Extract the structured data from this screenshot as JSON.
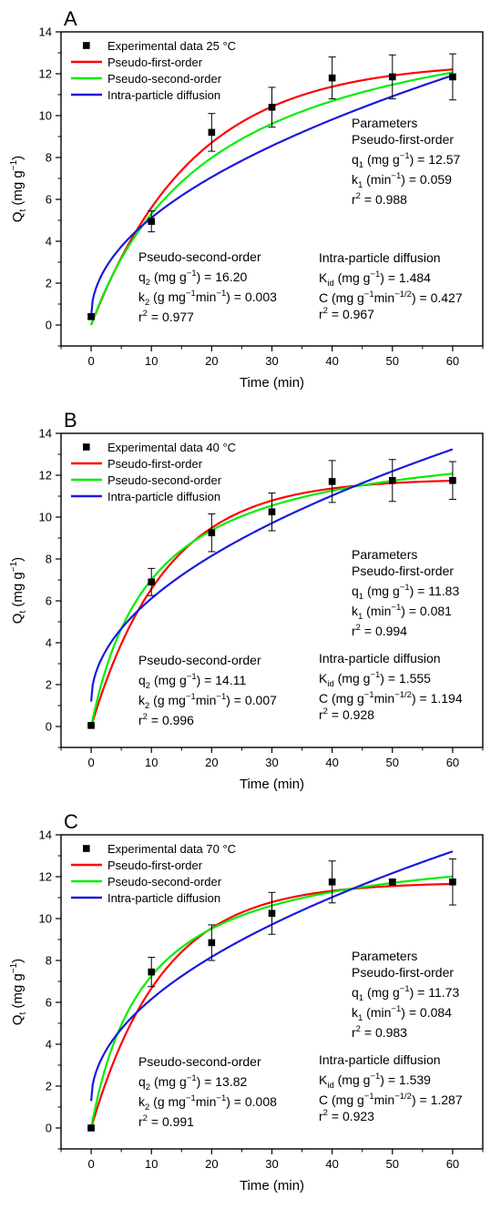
{
  "chart_data": [
    {
      "type": "line",
      "panel_label": "A",
      "xlabel": "Time (min)",
      "ylabel": "Q",
      "ylabel_sub": "t",
      "ylabel_unit": " (mg g",
      "ylabel_unit_sup": "−1",
      "ylabel_unit_close": ")",
      "xlim": [
        -5,
        65
      ],
      "ylim": [
        -1,
        14
      ],
      "xticks": [
        0,
        10,
        20,
        30,
        40,
        50,
        60
      ],
      "yticks": [
        0,
        2,
        4,
        6,
        8,
        10,
        12,
        14
      ],
      "legend": {
        "experimental": "Experimental data 25 °C",
        "pfo": "Pseudo-first-order",
        "pso": "Pseudo-second-order",
        "ipd": "Intra-particle diffusion"
      },
      "experimental": {
        "x": [
          0,
          10,
          20,
          30,
          40,
          50,
          60
        ],
        "y": [
          0.4,
          4.95,
          9.2,
          10.4,
          11.8,
          11.85,
          11.85
        ],
        "error": [
          0.1,
          0.5,
          0.9,
          0.95,
          1.0,
          1.05,
          1.1
        ]
      },
      "params": {
        "pfo": {
          "qe": 12.57,
          "k1": 0.059,
          "r2": 0.988
        },
        "pso": {
          "qe": 16.2,
          "k2": 0.003,
          "r2": 0.977
        },
        "ipd": {
          "kid": 1.484,
          "c": 0.427,
          "r2": 0.967
        }
      },
      "annotations": {
        "parameters_title": "Parameters",
        "pfo_title": "Pseudo-first-order",
        "pfo_q1": "12.57",
        "pfo_k1": "0.059",
        "pfo_r2": "0.988",
        "pso_title": "Pseudo-second-order",
        "pso_q2": "16.20",
        "pso_k2": "0.003",
        "pso_r2": "0.977",
        "ipd_title": "Intra-particle diffusion",
        "ipd_kid": "1.484",
        "ipd_c": "0.427",
        "ipd_r2": "0.967"
      }
    },
    {
      "type": "line",
      "panel_label": "B",
      "xlabel": "Time (min)",
      "ylabel": "Q",
      "ylabel_sub": "t",
      "ylabel_unit": " (mg g",
      "ylabel_unit_sup": "−1",
      "ylabel_unit_close": ")",
      "xlim": [
        -5,
        65
      ],
      "ylim": [
        -1,
        14
      ],
      "xticks": [
        0,
        10,
        20,
        30,
        40,
        50,
        60
      ],
      "yticks": [
        0,
        2,
        4,
        6,
        8,
        10,
        12,
        14
      ],
      "legend": {
        "experimental": "Experimental data 40 °C",
        "pfo": "Pseudo-first-order",
        "pso": "Pseudo-second-order",
        "ipd": "Intra-particle diffusion"
      },
      "experimental": {
        "x": [
          0,
          10,
          20,
          30,
          40,
          50,
          60
        ],
        "y": [
          0.05,
          6.9,
          9.25,
          10.25,
          11.7,
          11.75,
          11.75
        ],
        "error": [
          0.05,
          0.65,
          0.9,
          0.9,
          1.0,
          1.0,
          0.9
        ]
      },
      "params": {
        "pfo": {
          "qe": 11.83,
          "k1": 0.081,
          "r2": 0.994
        },
        "pso": {
          "qe": 14.11,
          "k2": 0.007,
          "r2": 0.996
        },
        "ipd": {
          "kid": 1.555,
          "c": 1.194,
          "r2": 0.928
        }
      },
      "annotations": {
        "parameters_title": "Parameters",
        "pfo_title": "Pseudo-first-order",
        "pfo_q1": "11.83",
        "pfo_k1": "0.081",
        "pfo_r2": "0.994",
        "pso_title": "Pseudo-second-order",
        "pso_q2": "14.11",
        "pso_k2": "0.007",
        "pso_r2": "0.996",
        "ipd_title": "Intra-particle diffusion",
        "ipd_kid": "1.555",
        "ipd_c": "1.194",
        "ipd_r2": "0.928"
      }
    },
    {
      "type": "line",
      "panel_label": "C",
      "xlabel": "Time (min)",
      "ylabel": "Q",
      "ylabel_sub": "t",
      "ylabel_unit": " (mg g",
      "ylabel_unit_sup": "−1",
      "ylabel_unit_close": ")",
      "xlim": [
        -5,
        65
      ],
      "ylim": [
        -1,
        14
      ],
      "xticks": [
        0,
        10,
        20,
        30,
        40,
        50,
        60
      ],
      "yticks": [
        0,
        2,
        4,
        6,
        8,
        10,
        12,
        14
      ],
      "legend": {
        "experimental": "Experimental data 70 °C",
        "pfo": "Pseudo-first-order",
        "pso": "Pseudo-second-order",
        "ipd": "Intra-particle diffusion"
      },
      "experimental": {
        "x": [
          0,
          10,
          20,
          30,
          40,
          50,
          60
        ],
        "y": [
          0.0,
          7.45,
          8.85,
          10.25,
          11.75,
          11.75,
          11.75
        ],
        "error": [
          0.05,
          0.7,
          0.85,
          1.0,
          1.0,
          0.1,
          1.1
        ]
      },
      "params": {
        "pfo": {
          "qe": 11.73,
          "k1": 0.084,
          "r2": 0.983
        },
        "pso": {
          "qe": 13.82,
          "k2": 0.008,
          "r2": 0.991
        },
        "ipd": {
          "kid": 1.539,
          "c": 1.287,
          "r2": 0.923
        }
      },
      "annotations": {
        "parameters_title": "Parameters",
        "pfo_title": "Pseudo-first-order",
        "pfo_q1": "11.73",
        "pfo_k1": "0.084",
        "pfo_r2": "0.983",
        "pso_title": "Pseudo-second-order",
        "pso_q2": "13.82",
        "pso_k2": "0.008",
        "pso_r2": "0.991",
        "ipd_title": "Intra-particle diffusion",
        "ipd_kid": "1.539",
        "ipd_c": "1.287",
        "ipd_r2": "0.923"
      }
    }
  ],
  "colors": {
    "pfo": "#ff0000",
    "pso": "#00ee00",
    "ipd": "#1a1adb",
    "experimental": "#000000"
  }
}
